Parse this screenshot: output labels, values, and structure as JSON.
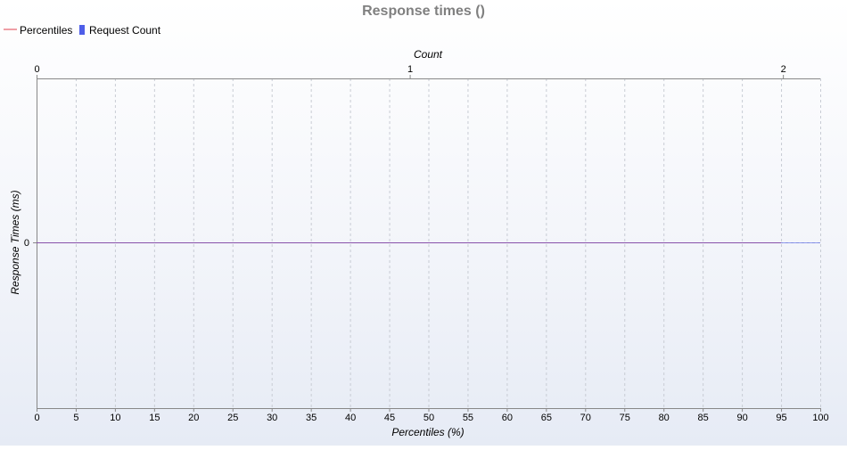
{
  "chart_data": {
    "type": "line",
    "title": "Response times ()",
    "xlabel": "Percentiles (%)",
    "ylabel": "Response Times (ms)",
    "x2label": "Count",
    "xlim": [
      0,
      100
    ],
    "x_ticks": [
      "0",
      "5",
      "10",
      "15",
      "20",
      "25",
      "30",
      "35",
      "40",
      "45",
      "50",
      "55",
      "60",
      "65",
      "70",
      "75",
      "80",
      "85",
      "90",
      "95",
      "100"
    ],
    "x2lim": [
      0,
      2.1
    ],
    "x2_ticks": [
      "0",
      "1",
      "2"
    ],
    "y_ticks": [
      "0"
    ],
    "grid": true,
    "legend_position": "top-left",
    "series": [
      {
        "name": "Percentiles",
        "kind": "line",
        "color": "#e0404e",
        "x": [
          0,
          95
        ],
        "y": [
          0,
          0
        ]
      },
      {
        "name": "Request Count",
        "kind": "bar",
        "color": "#4e5ee8",
        "x": [
          0,
          2.1
        ],
        "y": [
          0,
          0
        ]
      }
    ],
    "colors": {
      "axis": "#888888",
      "grid": "#c8ccd4",
      "title": "#808080"
    }
  }
}
